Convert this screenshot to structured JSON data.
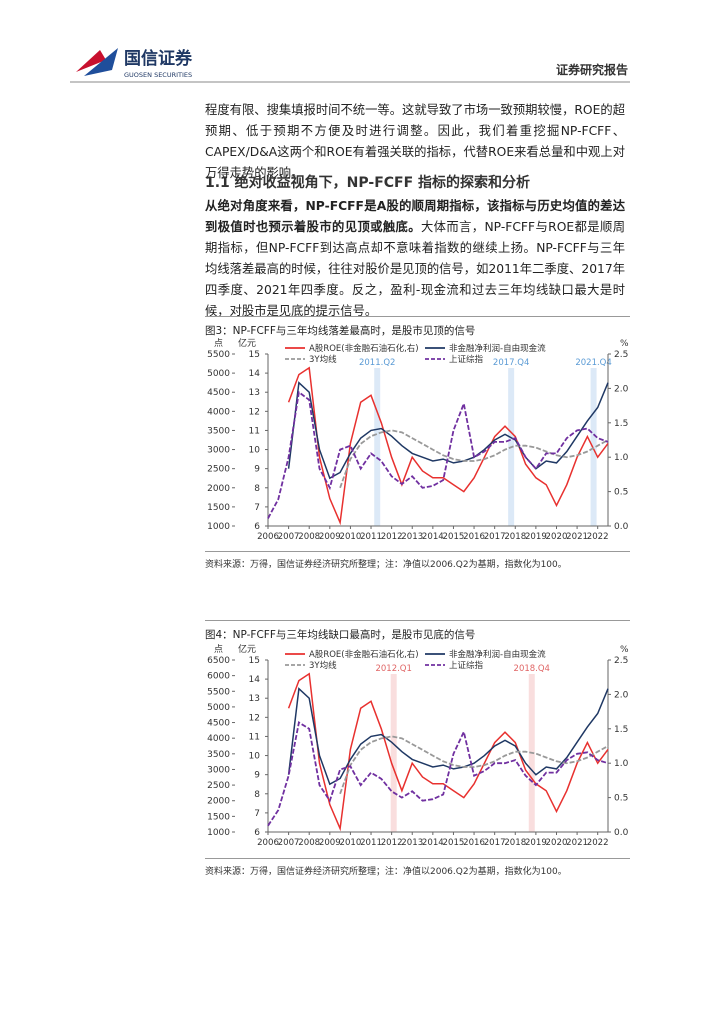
{
  "header": {
    "brand": "国信证券",
    "brand_en": "GUOSEN SECURITIES",
    "report": "证券研究报告"
  },
  "intro": "程度有限、搜集填报时间不统一等。这就导致了市场一致预期较慢，ROE的超预期、低于预期不方便及时进行调整。因此，我们着重挖掘NP-FCFF、CAPEX/D&A这两个和ROE有着强关联的指标，代替ROE来看总量和中观上对万得走势的影响。",
  "section": {
    "title": "1.1 绝对收益视角下，NP-FCFF 指标的探索和分析",
    "bold": "从绝对角度来看，NP-FCFF是A股的顺周期指标，该指标与历史均值的差达到极值时也预示着股市的见顶或触底。",
    "text": "大体而言，NP-FCFF与ROE都是顺周期指标，但NP-FCFF到达高点却不意味着指数的继续上扬。NP-FCFF与三年均线落差最高的时候，往往对股价是见顶的信号，如2011年二季度、2017年四季度、2021年四季度。反之，盈利-现金流和过去三年均线缺口最大是时候，对股市是见底的提示信号。"
  },
  "figures": [
    {
      "title": "图3：NP-FCFF与三年均线落差最高时，是股市见顶的信号",
      "source": "资料来源：万得，国信证券经济研究所整理；注：净值以2006.Q2为基期，指数化为100。",
      "chart": {
        "type": "line",
        "ylabel": "点",
        "y2label": "亿元",
        "y3label": "%",
        "x": [
          2006,
          2006.5,
          2007,
          2007.5,
          2008,
          2008.5,
          2009,
          2009.5,
          2010,
          2010.5,
          2011,
          2011.5,
          2012,
          2012.5,
          2013,
          2013.5,
          2014,
          2014.5,
          2015,
          2015.5,
          2016,
          2016.5,
          2017,
          2017.5,
          2018,
          2018.5,
          2019,
          2019.5,
          2020,
          2020.5,
          2021,
          2021.5,
          2022,
          2022.5
        ],
        "xlim": [
          2006,
          2022.5
        ],
        "xticks": [
          2006,
          2007,
          2008,
          2009,
          2010,
          2011,
          2012,
          2013,
          2014,
          2015,
          2016,
          2017,
          2018,
          2019,
          2020,
          2021,
          2022
        ],
        "ylim": [
          1000,
          5500
        ],
        "yticks": [
          1000,
          1500,
          2000,
          2500,
          3000,
          3500,
          4000,
          4500,
          5000,
          5500
        ],
        "y2lim": [
          6,
          15
        ],
        "y2ticks": [
          6,
          7,
          8,
          9,
          10,
          11,
          12,
          13,
          14,
          15
        ],
        "y3lim": [
          0,
          2.5
        ],
        "y3ticks": [
          {
            "value": 0,
            "label": "0.0"
          },
          0.5,
          {
            "value": 1,
            "label": "1.0"
          },
          1.5,
          {
            "value": 2,
            "label": "2.0"
          },
          2.5
        ],
        "highlight_color": "#5b9bd5",
        "highlight_fill": "#dce9f7",
        "highlights": [
          {
            "label": "2011.Q2",
            "x": 2011.3
          },
          {
            "label": "2017.Q4",
            "x": 2017.8
          },
          {
            "label": "2021.Q4",
            "x": 2021.8
          }
        ],
        "series": [
          {
            "name": "A股ROE(非金融石油石化,右)",
            "color": "#e8312f",
            "axis": "y3",
            "style": "solid",
            "values": [
              null,
              null,
              1.8,
              2.2,
              2.3,
              1.0,
              0.4,
              0.05,
              1.2,
              1.8,
              1.9,
              1.5,
              1.0,
              0.6,
              1.0,
              0.8,
              0.7,
              0.7,
              0.6,
              0.5,
              0.7,
              1.0,
              1.3,
              1.45,
              1.3,
              0.9,
              0.7,
              0.6,
              0.3,
              0.6,
              1.0,
              1.3,
              1.0,
              1.2
            ]
          },
          {
            "name": "非金融净利润-自由现金流",
            "color": "#1f3864",
            "axis": "y2",
            "style": "solid",
            "values": [
              null,
              null,
              9,
              13.5,
              13,
              10,
              8.5,
              8.8,
              9.8,
              10.6,
              11,
              11.1,
              10.7,
              10.2,
              9.8,
              9.6,
              9.4,
              9.5,
              9.3,
              9.4,
              9.6,
              10,
              10.5,
              10.8,
              10.5,
              9.6,
              9.0,
              9.4,
              9.3,
              9.9,
              10.7,
              11.5,
              12.2,
              13.5
            ]
          },
          {
            "name": "3Y均线",
            "color": "#999999",
            "axis": "y2",
            "style": "dashed",
            "values": [
              null,
              null,
              null,
              null,
              null,
              null,
              null,
              8,
              9.5,
              10.3,
              10.7,
              10.9,
              11,
              10.9,
              10.6,
              10.3,
              10,
              9.7,
              9.5,
              9.4,
              9.4,
              9.5,
              9.7,
              10,
              10.2,
              10.2,
              10.1,
              9.9,
              9.7,
              9.6,
              9.7,
              9.9,
              10.2,
              10.5
            ]
          },
          {
            "name": "上证综指",
            "color": "#7030a0",
            "axis": "y",
            "style": "dashed",
            "values": [
              1200,
              1700,
              2800,
              4500,
              4300,
              2500,
              2000,
              3000,
              3100,
              2500,
              2900,
              2700,
              2300,
              2100,
              2300,
              2000,
              2050,
              2200,
              3500,
              4200,
              2800,
              2950,
              3200,
              3200,
              3300,
              2800,
              2500,
              2900,
              2900,
              3300,
              3500,
              3550,
              3300,
              3200
            ]
          }
        ]
      }
    },
    {
      "title": "图4：NP-FCFF与三年均线缺口最高时，是股市见底的信号",
      "source": "资料来源：万得，国信证券经济研究所整理；注：净值以2006.Q2为基期，指数化为100。",
      "chart": {
        "type": "line",
        "ylabel": "点",
        "y2label": "亿元",
        "y3label": "%",
        "x": [
          2006,
          2006.5,
          2007,
          2007.5,
          2008,
          2008.5,
          2009,
          2009.5,
          2010,
          2010.5,
          2011,
          2011.5,
          2012,
          2012.5,
          2013,
          2013.5,
          2014,
          2014.5,
          2015,
          2015.5,
          2016,
          2016.5,
          2017,
          2017.5,
          2018,
          2018.5,
          2019,
          2019.5,
          2020,
          2020.5,
          2021,
          2021.5,
          2022,
          2022.5
        ],
        "xlim": [
          2006,
          2022.5
        ],
        "xticks": [
          2006,
          2007,
          2008,
          2009,
          2010,
          2011,
          2012,
          2013,
          2014,
          2015,
          2016,
          2017,
          2018,
          2019,
          2020,
          2021,
          2022
        ],
        "ylim": [
          1000,
          6500
        ],
        "yticks": [
          1000,
          1500,
          2000,
          2500,
          3000,
          3500,
          4000,
          4500,
          5000,
          5500,
          6000,
          6500
        ],
        "y2lim": [
          6,
          15
        ],
        "y2ticks": [
          6,
          7,
          8,
          9,
          10,
          11,
          12,
          13,
          14,
          15
        ],
        "y3lim": [
          0,
          2.5
        ],
        "y3ticks": [
          {
            "value": 0,
            "label": "0.0"
          },
          0.5,
          {
            "value": 1,
            "label": "1.0"
          },
          1.5,
          {
            "value": 2,
            "label": "2.0"
          },
          2.5
        ],
        "highlight_color": "#e06666",
        "highlight_fill": "#f9dede",
        "highlights": [
          {
            "label": "2012.Q1",
            "x": 2012.1
          },
          {
            "label": "2018.Q4",
            "x": 2018.8
          }
        ],
        "series": [
          {
            "name": "A股ROE(非金融石油石化,右)",
            "color": "#e8312f",
            "axis": "y3",
            "style": "solid",
            "values": [
              null,
              null,
              1.8,
              2.2,
              2.3,
              1.0,
              0.4,
              0.05,
              1.2,
              1.8,
              1.9,
              1.5,
              1.0,
              0.6,
              1.0,
              0.8,
              0.7,
              0.7,
              0.6,
              0.5,
              0.7,
              1.0,
              1.3,
              1.45,
              1.3,
              0.9,
              0.7,
              0.6,
              0.3,
              0.6,
              1.0,
              1.3,
              1.0,
              1.2
            ]
          },
          {
            "name": "非金融净利润-自由现金流",
            "color": "#1f3864",
            "axis": "y2",
            "style": "solid",
            "values": [
              null,
              null,
              9,
              13.5,
              13,
              10,
              8.5,
              8.8,
              9.8,
              10.6,
              11,
              11.1,
              10.7,
              10.2,
              9.8,
              9.6,
              9.4,
              9.5,
              9.3,
              9.4,
              9.6,
              10,
              10.5,
              10.8,
              10.5,
              9.6,
              9.0,
              9.4,
              9.3,
              9.9,
              10.7,
              11.5,
              12.2,
              13.5
            ]
          },
          {
            "name": "3Y均线",
            "color": "#999999",
            "axis": "y2",
            "style": "dashed",
            "values": [
              null,
              null,
              null,
              null,
              null,
              null,
              null,
              8,
              9.5,
              10.3,
              10.7,
              10.9,
              11,
              10.9,
              10.6,
              10.3,
              10,
              9.7,
              9.5,
              9.4,
              9.4,
              9.5,
              9.7,
              10,
              10.2,
              10.2,
              10.1,
              9.9,
              9.7,
              9.6,
              9.7,
              9.9,
              10.2,
              10.5
            ]
          },
          {
            "name": "上证综指",
            "color": "#7030a0",
            "axis": "y",
            "style": "dashed",
            "values": [
              1200,
              1700,
              2800,
              4500,
              4300,
              2500,
              2000,
              3000,
              3100,
              2500,
              2900,
              2700,
              2300,
              2100,
              2300,
              2000,
              2050,
              2200,
              3500,
              4200,
              2800,
              2950,
              3200,
              3200,
              3300,
              2800,
              2500,
              2900,
              2900,
              3300,
              3500,
              3550,
              3300,
              3200
            ]
          }
        ]
      }
    }
  ]
}
